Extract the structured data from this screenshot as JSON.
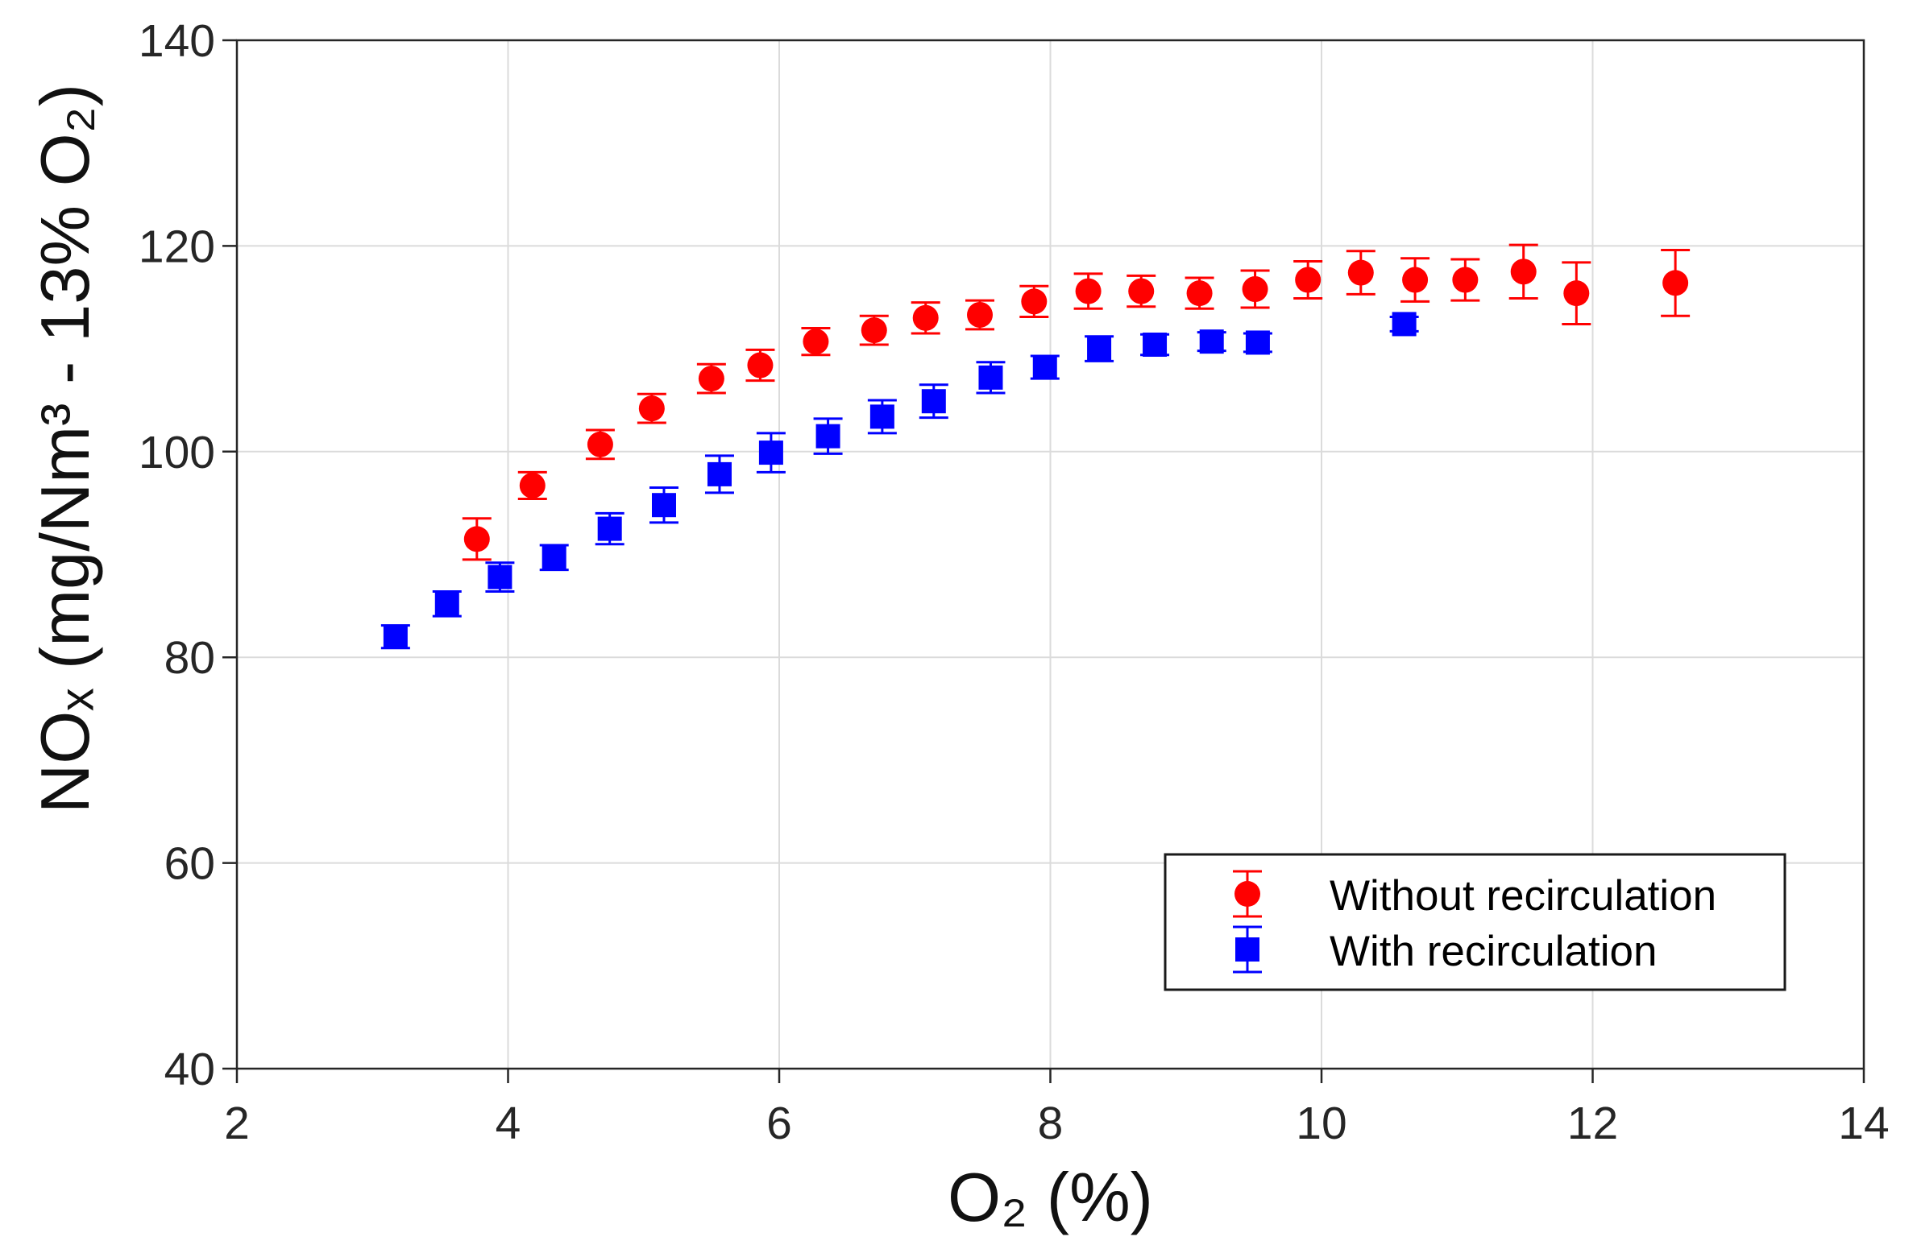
{
  "chart_data": {
    "type": "scatter",
    "xlabel": "O₂ (%)",
    "ylabel": "NOₓ (mg/Nm³ - 13% O₂)",
    "xlim": [
      2,
      14
    ],
    "ylim": [
      40,
      140
    ],
    "xticks": [
      2,
      4,
      6,
      8,
      10,
      12,
      14
    ],
    "yticks": [
      40,
      60,
      80,
      100,
      120,
      140
    ],
    "grid": true,
    "legend_position": "bottom-right",
    "series": [
      {
        "name": "Without recirculation",
        "color": "#FF0000",
        "marker": "circle",
        "x": [
          3.77,
          4.18,
          4.68,
          5.06,
          5.5,
          5.86,
          6.27,
          6.7,
          7.08,
          7.48,
          7.88,
          8.28,
          8.67,
          9.1,
          9.51,
          9.9,
          10.29,
          10.69,
          11.06,
          11.49,
          11.88,
          12.61
        ],
        "y": [
          91.5,
          96.7,
          100.7,
          104.2,
          107.1,
          108.4,
          110.7,
          111.8,
          113.0,
          113.3,
          114.6,
          115.6,
          115.6,
          115.4,
          115.8,
          116.7,
          117.4,
          116.7,
          116.7,
          117.5,
          115.4,
          116.4
        ],
        "err": [
          2.0,
          1.3,
          1.4,
          1.4,
          1.4,
          1.5,
          1.3,
          1.4,
          1.5,
          1.4,
          1.5,
          1.7,
          1.5,
          1.5,
          1.8,
          1.8,
          2.1,
          2.1,
          2.0,
          2.6,
          3.0,
          3.2
        ]
      },
      {
        "name": "With recirculation",
        "color": "#0000FF",
        "marker": "square",
        "x": [
          3.17,
          3.55,
          3.94,
          4.34,
          4.75,
          5.15,
          5.56,
          5.94,
          6.36,
          6.76,
          7.14,
          7.56,
          7.96,
          8.36,
          8.77,
          9.19,
          9.53,
          10.61
        ],
        "y": [
          82.0,
          85.2,
          87.8,
          89.7,
          92.5,
          94.8,
          97.8,
          99.9,
          101.5,
          103.4,
          104.9,
          107.2,
          108.2,
          110.0,
          110.4,
          110.7,
          110.6,
          112.4
        ],
        "err": [
          1.1,
          1.2,
          1.4,
          1.2,
          1.5,
          1.7,
          1.8,
          1.9,
          1.7,
          1.6,
          1.6,
          1.5,
          1.1,
          1.2,
          1.0,
          0.9,
          0.9,
          0.7
        ]
      }
    ]
  }
}
